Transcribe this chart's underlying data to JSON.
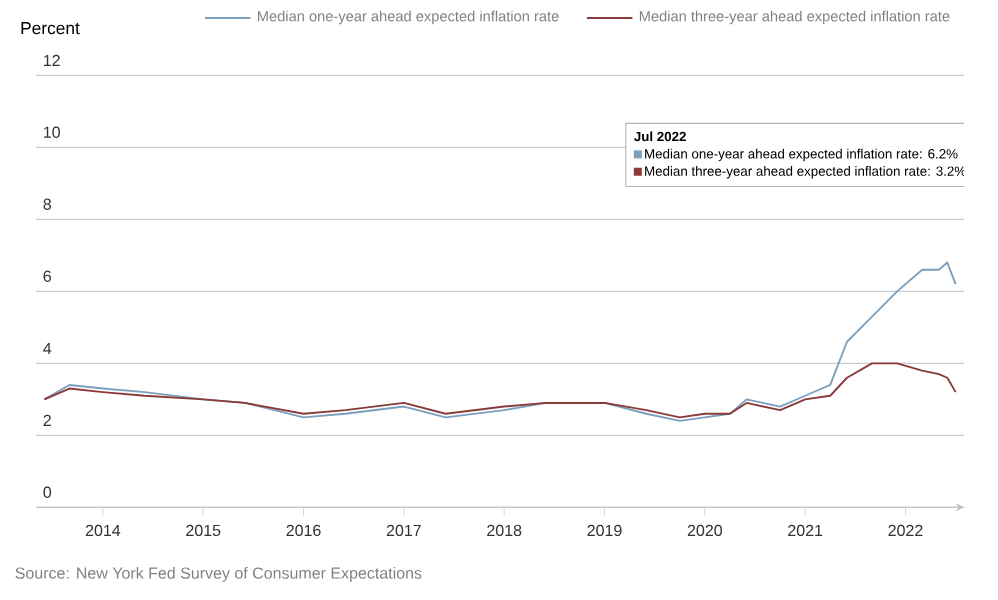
{
  "chart_data": {
    "type": "line",
    "ylabel": "Percent",
    "legend": "top",
    "grid": "y",
    "marker": "none",
    "line_style": "solid",
    "xlim": [
      "2013-05",
      "2022-08"
    ],
    "ylim": [
      0,
      12
    ],
    "yticks": [
      0,
      2,
      4,
      6,
      8,
      10,
      12
    ],
    "xticks": [
      "2014",
      "2015",
      "2016",
      "2017",
      "2018",
      "2019",
      "2020",
      "2021",
      "2022"
    ],
    "x": [
      "2013-06",
      "2013-09",
      "2014-01",
      "2014-06",
      "2015-01",
      "2015-06",
      "2016-01",
      "2016-06",
      "2017-01",
      "2017-06",
      "2018-01",
      "2018-06",
      "2019-01",
      "2019-06",
      "2019-10",
      "2020-01",
      "2020-04",
      "2020-06",
      "2020-10",
      "2021-01",
      "2021-04",
      "2021-06",
      "2021-09",
      "2021-12",
      "2022-03",
      "2022-05",
      "2022-06",
      "2022-07"
    ],
    "series": [
      {
        "name": "Median one-year ahead expected inflation rate",
        "color": "#7b9fbd",
        "values": [
          3.0,
          3.4,
          3.3,
          3.2,
          3.0,
          2.9,
          2.5,
          2.6,
          2.8,
          2.5,
          2.7,
          2.9,
          2.9,
          2.6,
          2.4,
          2.5,
          2.6,
          3.0,
          2.8,
          3.1,
          3.4,
          4.6,
          5.3,
          6.0,
          6.6,
          6.6,
          6.8,
          6.2
        ]
      },
      {
        "name": "Median three-year ahead expected inflation rate",
        "color": "#8b3a3a",
        "values": [
          3.0,
          3.3,
          3.2,
          3.1,
          3.0,
          2.9,
          2.6,
          2.7,
          2.9,
          2.6,
          2.8,
          2.9,
          2.9,
          2.7,
          2.5,
          2.6,
          2.6,
          2.9,
          2.7,
          3.0,
          3.1,
          3.6,
          4.0,
          4.0,
          3.8,
          3.7,
          3.6,
          3.2
        ]
      }
    ],
    "annotations": [
      "Jul 2022",
      "Median one-year ahead expected inflation rate: 6.2%",
      "Median three-year ahead expected inflation rate: 3.2%",
      "Source: New York Fed Survey of Consumer Expectations"
    ]
  }
}
